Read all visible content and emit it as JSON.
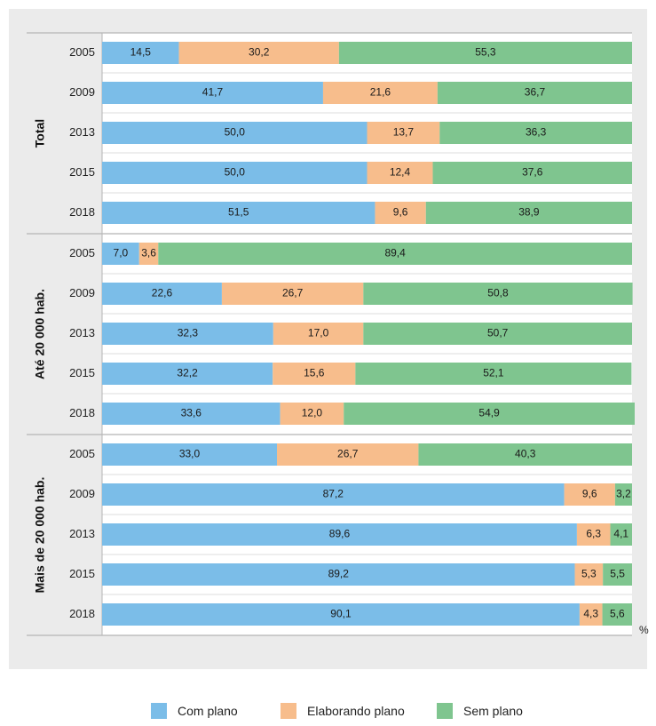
{
  "chart_data": {
    "type": "bar",
    "orientation": "horizontal",
    "stacked": true,
    "unit_label": "%",
    "xlim": [
      0,
      100
    ],
    "grid": true,
    "legend_position": "bottom",
    "series": [
      {
        "name": "Com plano",
        "color": "#7bbde8"
      },
      {
        "name": "Elaborando plano",
        "color": "#f7bd8c"
      },
      {
        "name": "Sem plano",
        "color": "#7fc58f"
      }
    ],
    "groups": [
      {
        "label": "Total",
        "rows": [
          {
            "year": "2005",
            "values": [
              14.5,
              30.2,
              55.3
            ],
            "labels": [
              "14,5",
              "30,2",
              "55,3"
            ]
          },
          {
            "year": "2009",
            "values": [
              41.7,
              21.6,
              36.7
            ],
            "labels": [
              "41,7",
              "21,6",
              "36,7"
            ]
          },
          {
            "year": "2013",
            "values": [
              50.0,
              13.7,
              36.3
            ],
            "labels": [
              "50,0",
              "13,7",
              "36,3"
            ]
          },
          {
            "year": "2015",
            "values": [
              50.0,
              12.4,
              37.6
            ],
            "labels": [
              "50,0",
              "12,4",
              "37,6"
            ]
          },
          {
            "year": "2018",
            "values": [
              51.5,
              9.6,
              38.9
            ],
            "labels": [
              "51,5",
              "9,6",
              "38,9"
            ]
          }
        ]
      },
      {
        "label": "Até 20 000 hab.",
        "rows": [
          {
            "year": "2005",
            "values": [
              7.0,
              3.6,
              89.4
            ],
            "labels": [
              "7,0",
              "3,6",
              "89,4"
            ]
          },
          {
            "year": "2009",
            "values": [
              22.6,
              26.7,
              50.8
            ],
            "labels": [
              "22,6",
              "26,7",
              "50,8"
            ]
          },
          {
            "year": "2013",
            "values": [
              32.3,
              17.0,
              50.7
            ],
            "labels": [
              "32,3",
              "17,0",
              "50,7"
            ]
          },
          {
            "year": "2015",
            "values": [
              32.2,
              15.6,
              52.1
            ],
            "labels": [
              "32,2",
              "15,6",
              "52,1"
            ]
          },
          {
            "year": "2018",
            "values": [
              33.6,
              12.0,
              54.9
            ],
            "labels": [
              "33,6",
              "12,0",
              "54,9"
            ]
          }
        ]
      },
      {
        "label": "Mais de 20 000 hab.",
        "rows": [
          {
            "year": "2005",
            "values": [
              33.0,
              26.7,
              40.3
            ],
            "labels": [
              "33,0",
              "26,7",
              "40,3"
            ]
          },
          {
            "year": "2009",
            "values": [
              87.2,
              9.6,
              3.2
            ],
            "labels": [
              "87,2",
              "9,6",
              "3,2"
            ]
          },
          {
            "year": "2013",
            "values": [
              89.6,
              6.3,
              4.1
            ],
            "labels": [
              "89,6",
              "6,3",
              "4,1"
            ]
          },
          {
            "year": "2015",
            "values": [
              89.2,
              5.3,
              5.5
            ],
            "labels": [
              "89,2",
              "5,3",
              "5,5"
            ]
          },
          {
            "year": "2018",
            "values": [
              90.1,
              4.3,
              5.6
            ],
            "labels": [
              "90,1",
              "4,3",
              "5,6"
            ]
          }
        ]
      }
    ]
  },
  "legend": [
    {
      "label": "Com plano",
      "color": "#7bbde8"
    },
    {
      "label": "Elaborando plano",
      "color": "#f7bd8c"
    },
    {
      "label": "Sem plano",
      "color": "#7fc58f"
    }
  ]
}
